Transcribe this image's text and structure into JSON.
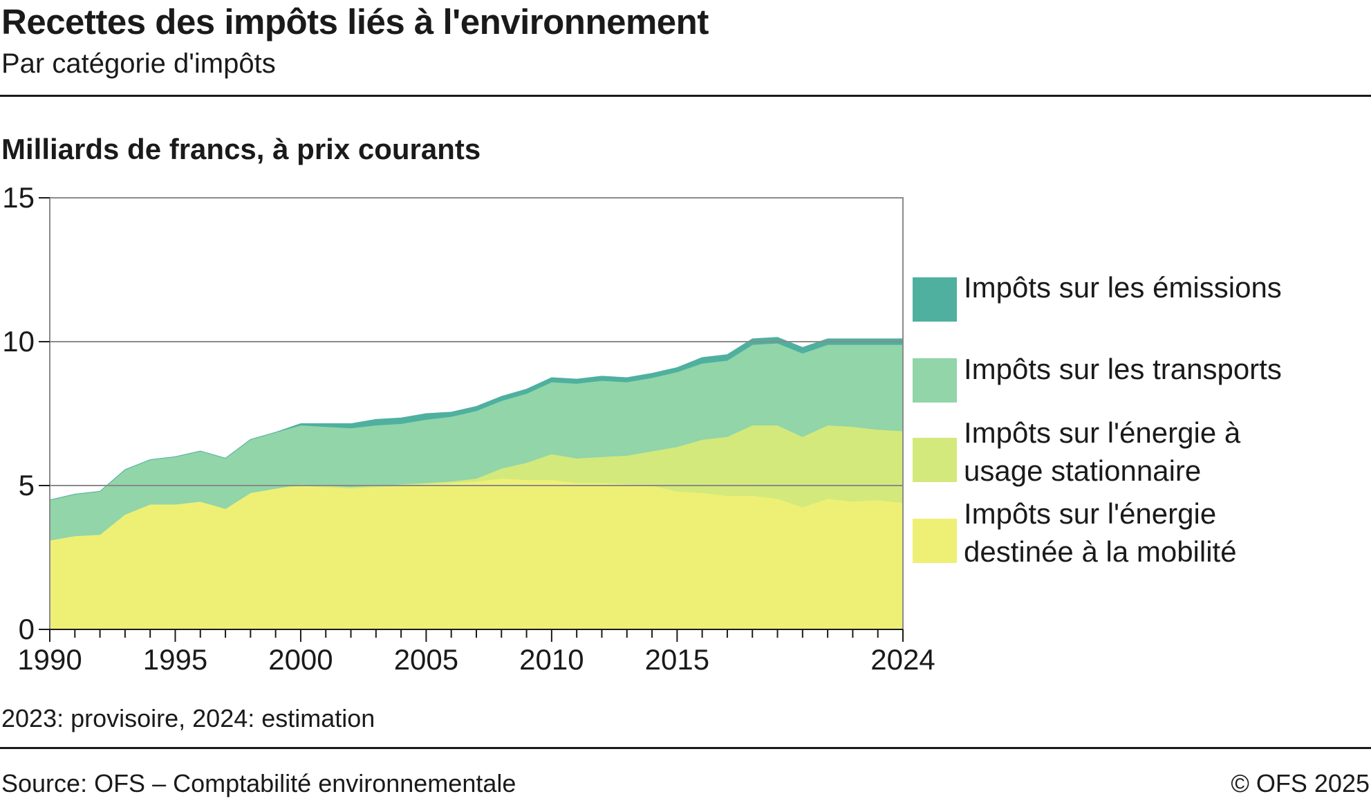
{
  "header": {
    "title": "Recettes des impôts liés à l'environnement",
    "subtitle": "Par catégorie d'impôts"
  },
  "unit_label": "Milliards de francs, à prix courants",
  "footer": {
    "note": "2023: provisoire, 2024: estimation",
    "source": "Source: OFS – Comptabilité environnementale",
    "copyright": "© OFS 2025"
  },
  "colors": {
    "mobilite": "#eef075",
    "stationnaire": "#d3e97c",
    "transports": "#91d5a9",
    "emissions": "#4fb09f"
  },
  "chart_data": {
    "type": "area",
    "stacked": true,
    "title": "Recettes des impôts liés à l'environnement",
    "subtitle": "Par catégorie d'impôts",
    "ylabel": "Milliards de francs, à prix courants",
    "ylim": [
      0,
      15
    ],
    "yticks": [
      0,
      5,
      10,
      15
    ],
    "xlim": [
      1990,
      2024
    ],
    "xticks": [
      1990,
      1995,
      2000,
      2005,
      2010,
      2015,
      2024
    ],
    "grid": true,
    "legend_position": "right",
    "x": [
      1990,
      1991,
      1992,
      1993,
      1994,
      1995,
      1996,
      1997,
      1998,
      1999,
      2000,
      2001,
      2002,
      2003,
      2004,
      2005,
      2006,
      2007,
      2008,
      2009,
      2010,
      2011,
      2012,
      2013,
      2014,
      2015,
      2016,
      2017,
      2018,
      2019,
      2020,
      2021,
      2022,
      2023,
      2024
    ],
    "series": [
      {
        "name": "Impôts sur l'énergie destinée à la mobilité",
        "legend_lines": [
          "Impôts sur l'énergie",
          "destinée à la mobilité"
        ],
        "color": "#eef075",
        "values": [
          3.1,
          3.25,
          3.3,
          4.0,
          4.35,
          4.35,
          4.45,
          4.2,
          4.75,
          4.9,
          5.0,
          4.95,
          4.9,
          4.95,
          5.0,
          5.05,
          5.1,
          5.15,
          5.25,
          5.2,
          5.2,
          5.1,
          5.1,
          5.05,
          5.0,
          4.8,
          4.75,
          4.65,
          4.65,
          4.55,
          4.25,
          4.55,
          4.45,
          4.5,
          4.4
        ]
      },
      {
        "name": "Impôts sur l'énergie à usage stationnaire",
        "legend_lines": [
          "Impôts sur l'énergie à",
          "usage stationnaire"
        ],
        "color": "#d3e97c",
        "values": [
          0,
          0,
          0,
          0,
          0,
          0,
          0,
          0,
          0,
          0,
          0.05,
          0.05,
          0.05,
          0.05,
          0.05,
          0.05,
          0.05,
          0.1,
          0.35,
          0.6,
          0.9,
          0.85,
          0.9,
          1.0,
          1.2,
          1.55,
          1.85,
          2.05,
          2.45,
          2.55,
          2.45,
          2.55,
          2.6,
          2.45,
          2.5
        ]
      },
      {
        "name": "Impôts sur les transports",
        "legend_lines": [
          "Impôts sur les transports"
        ],
        "color": "#91d5a9",
        "values": [
          1.4,
          1.45,
          1.5,
          1.55,
          1.55,
          1.65,
          1.75,
          1.75,
          1.85,
          1.95,
          2.05,
          2.05,
          2.05,
          2.1,
          2.1,
          2.2,
          2.25,
          2.35,
          2.35,
          2.4,
          2.5,
          2.6,
          2.65,
          2.55,
          2.55,
          2.6,
          2.65,
          2.65,
          2.8,
          2.85,
          2.9,
          2.8,
          2.85,
          2.95,
          3.0
        ]
      },
      {
        "name": "Impôts sur les émissions",
        "legend_lines": [
          "Impôts sur les émissions"
        ],
        "color": "#4fb09f",
        "values": [
          0,
          0,
          0,
          0,
          0,
          0,
          0,
          0,
          0,
          0,
          0.05,
          0.1,
          0.15,
          0.2,
          0.2,
          0.2,
          0.15,
          0.15,
          0.15,
          0.15,
          0.15,
          0.15,
          0.15,
          0.15,
          0.15,
          0.15,
          0.2,
          0.2,
          0.2,
          0.2,
          0.2,
          0.2,
          0.2,
          0.2,
          0.2
        ]
      }
    ]
  }
}
